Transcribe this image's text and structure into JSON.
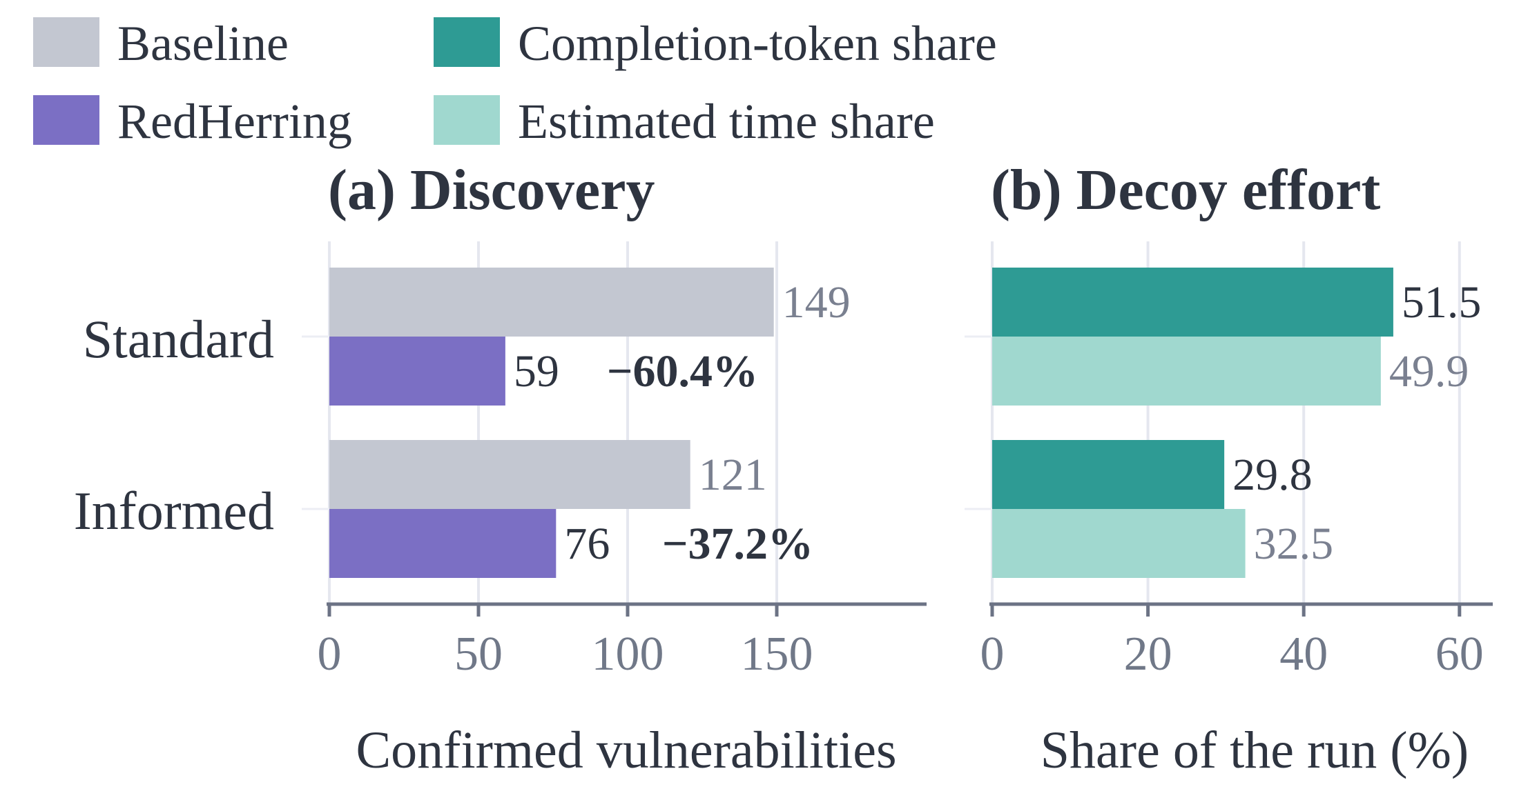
{
  "legend": {
    "items": [
      {
        "label": "Baseline",
        "color": "#c3c7d1"
      },
      {
        "label": "RedHerring",
        "color": "#7b6fc4"
      },
      {
        "label": "Completion-token share",
        "color": "#2e9b94"
      },
      {
        "label": "Estimated time share",
        "color": "#a0d8cf"
      }
    ]
  },
  "chart_data": [
    {
      "type": "bar",
      "orientation": "horizontal",
      "title": "(a) Discovery",
      "xlabel": "Confirmed vulnerabilities",
      "categories": [
        "Standard",
        "Informed"
      ],
      "xlim": [
        0,
        200
      ],
      "xticks": [
        0,
        50,
        100,
        150
      ],
      "grid": true,
      "series": [
        {
          "name": "Baseline",
          "values": [
            149,
            121
          ],
          "color": "#c3c7d1"
        },
        {
          "name": "RedHerring",
          "values": [
            59,
            76
          ],
          "color": "#7b6fc4"
        }
      ],
      "annotations": [
        "−60.4%",
        "−37.2%"
      ]
    },
    {
      "type": "bar",
      "orientation": "horizontal",
      "title": "(b) Decoy effort",
      "xlabel": "Share of the run (%)",
      "categories": [
        "Standard",
        "Informed"
      ],
      "xlim": [
        0,
        65
      ],
      "xticks": [
        0,
        20,
        40,
        60
      ],
      "grid": true,
      "series": [
        {
          "name": "Completion-token share",
          "values": [
            51.5,
            29.8
          ],
          "color": "#2e9b94"
        },
        {
          "name": "Estimated time share",
          "values": [
            49.9,
            32.5
          ],
          "color": "#a0d8cf"
        }
      ]
    }
  ]
}
